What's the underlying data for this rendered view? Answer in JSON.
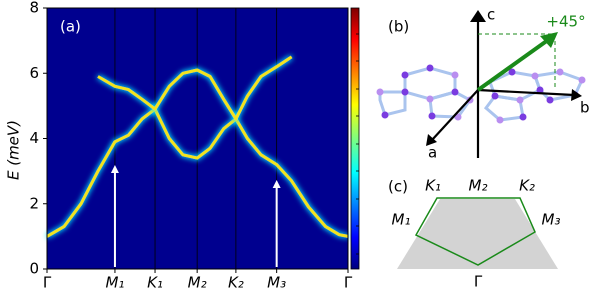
{
  "chart_data": {
    "type": "line",
    "panel_label": "(a)",
    "y_label": "E (meV)",
    "background": "#00008f",
    "xlim": [
      0,
      4.43
    ],
    "ylim": [
      0,
      8
    ],
    "yticks": [
      0,
      2,
      4,
      6,
      8
    ],
    "xticks": [
      {
        "value": 0,
        "label": "Γ"
      },
      {
        "value": 1.0,
        "label": "M₁"
      },
      {
        "value": 1.59,
        "label": "K₁"
      },
      {
        "value": 2.21,
        "label": "M₂"
      },
      {
        "value": 2.78,
        "label": "K₂"
      },
      {
        "value": 3.38,
        "label": "M₃"
      },
      {
        "value": 4.43,
        "label": "Γ"
      }
    ],
    "grid": true,
    "x": [
      0,
      0.25,
      0.5,
      0.75,
      1.0,
      1.2,
      1.4,
      1.59,
      1.8,
      2.0,
      2.21,
      2.4,
      2.6,
      2.78,
      2.95,
      3.15,
      3.38,
      3.6,
      3.85,
      4.1,
      4.3,
      4.43
    ],
    "series": [
      {
        "color": "#f2e41c",
        "values": [
          1.0,
          1.3,
          2.0,
          3.0,
          3.9,
          4.1,
          4.6,
          4.9,
          4.0,
          3.5,
          3.4,
          3.7,
          4.3,
          4.6,
          4.0,
          3.5,
          3.2,
          2.7,
          1.9,
          1.3,
          1.05,
          1.0
        ]
      },
      {
        "color": "#f2e41c",
        "values": [
          null,
          null,
          null,
          5.9,
          5.6,
          5.5,
          5.2,
          4.9,
          5.6,
          6.0,
          6.1,
          5.9,
          5.2,
          4.6,
          5.3,
          5.9,
          6.2,
          6.5,
          null,
          null,
          null,
          null
        ]
      }
    ]
  },
  "panel_b": {
    "label": "(b)",
    "axis_c": "c",
    "axis_b": "b",
    "axis_a": "a",
    "arrow_label": "+45°"
  },
  "panel_c": {
    "label": "(c)",
    "K1": "K₁",
    "M2": "M₂",
    "K2": "K₂",
    "M1": "M₁",
    "M3": "M₃",
    "G": "Γ"
  }
}
